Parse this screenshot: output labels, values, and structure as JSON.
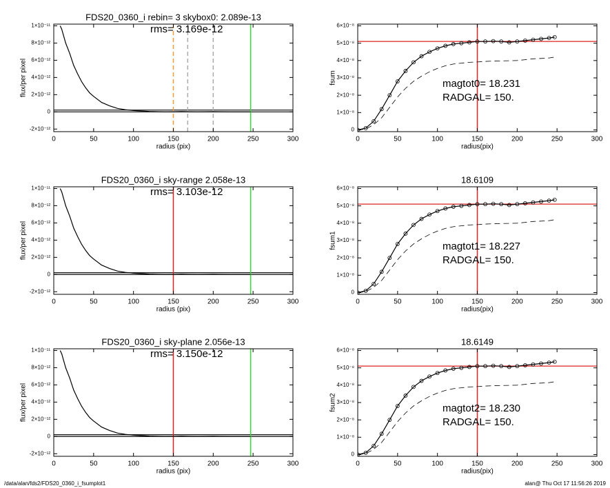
{
  "chart_data": [
    {
      "type": "line",
      "title": "FDS20_0360_i rebin= 3    skybox0:  2.089e-13",
      "annotations": [
        "rms= 3.169e-12"
      ],
      "x_label": "radius (pix)",
      "y_label": "flux/per pixel",
      "xlim": [
        0,
        300
      ],
      "xticks": [
        0,
        50,
        100,
        150,
        200,
        250,
        300
      ],
      "ylim": [
        -2.3e-12,
        1.02e-11
      ],
      "yticks": [
        {
          "value": 1e-11,
          "label": "1×10⁻¹¹"
        },
        {
          "value": 8e-12,
          "label": "8×10⁻¹²"
        },
        {
          "value": 6e-12,
          "label": "6×10⁻¹²"
        },
        {
          "value": 4e-12,
          "label": "4×10⁻¹²"
        },
        {
          "value": 2e-12,
          "label": "2×10⁻¹²"
        },
        0,
        {
          "value": -2e-12,
          "label": "-2×10⁻¹²"
        }
      ],
      "x": [
        8,
        10,
        15,
        20,
        25,
        30,
        35,
        40,
        45,
        50,
        60,
        70,
        80,
        90,
        100,
        120,
        140,
        160,
        180,
        200,
        220,
        247
      ],
      "series": [
        {
          "color": "#000000",
          "values": [
            1e-11,
            9.6e-12,
            8e-12,
            6.8e-12,
            5.4e-12,
            4.4e-12,
            3.5e-12,
            2.8e-12,
            2.2e-12,
            1.8e-12,
            1.1e-12,
            7e-13,
            4e-13,
            2.5e-13,
            1.5e-13,
            5e-14,
            0,
            3e-14,
            0,
            2e-14,
            0,
            0
          ]
        }
      ],
      "hlines": [
        {
          "y": 2.089e-13,
          "color": "#000000"
        },
        {
          "y": 0,
          "color": "#000000"
        }
      ],
      "vlines": [
        {
          "x": 150,
          "color": "#f09a3a",
          "dash": true
        },
        {
          "x": 168,
          "color": "#aaaaaa",
          "dash": true
        },
        {
          "x": 200,
          "color": "#aaaaaa",
          "dash": true
        },
        {
          "x": 247,
          "color": "#33dd33"
        }
      ]
    },
    {
      "type": "line",
      "annotations": [
        "magtot0=  18.231",
        "RADGAL=    150."
      ],
      "x_label": "radius(pix)",
      "y_label": "fsum",
      "xlim": [
        0,
        300
      ],
      "xticks": [
        0,
        50,
        100,
        150,
        200,
        250,
        300
      ],
      "ylim": [
        -1e-09,
        6.1e-08
      ],
      "yticks": [
        {
          "value": 6e-08,
          "label": "6×10⁻⁸"
        },
        {
          "value": 5e-08,
          "label": "5×10⁻⁸"
        },
        {
          "value": 4e-08,
          "label": "4×10⁻⁸"
        },
        {
          "value": 3e-08,
          "label": "3×10⁻⁸"
        },
        {
          "value": 2e-08,
          "label": "2×10⁻⁸"
        },
        {
          "value": 1e-08,
          "label": "1×10⁻⁸"
        },
        0
      ],
      "x": [
        0,
        10,
        20,
        30,
        40,
        50,
        60,
        70,
        80,
        90,
        100,
        110,
        120,
        130,
        140,
        150,
        160,
        170,
        180,
        190,
        200,
        210,
        220,
        230,
        240,
        247
      ],
      "series": [
        {
          "color": "#000000",
          "marker": "circle",
          "values": [
            0,
            1e-09,
            5e-09,
            1.2e-08,
            2e-08,
            2.8e-08,
            3.4e-08,
            3.9e-08,
            4.25e-08,
            4.5e-08,
            4.7e-08,
            4.85e-08,
            4.95e-08,
            5e-08,
            5.05e-08,
            5.1e-08,
            5.1e-08,
            5.12e-08,
            5.1e-08,
            5.05e-08,
            5.1e-08,
            5.15e-08,
            5.2e-08,
            5.25e-08,
            5.3e-08,
            5.35e-08
          ]
        },
        {
          "color": "#000000",
          "dash": true,
          "values": [
            0,
            5e-10,
            3e-09,
            7e-09,
            1.3e-08,
            1.9e-08,
            2.4e-08,
            2.8e-08,
            3.1e-08,
            3.35e-08,
            3.55e-08,
            3.7e-08,
            3.8e-08,
            3.85e-08,
            3.9e-08,
            3.92e-08,
            3.95e-08,
            3.97e-08,
            3.98e-08,
            3.99e-08,
            4e-08,
            4.05e-08,
            4.1e-08,
            4.12e-08,
            4.15e-08,
            4.2e-08
          ]
        }
      ],
      "hlines": [
        {
          "y": 5.1e-08,
          "color": "#dd2222"
        }
      ],
      "vlines": [
        {
          "x": 150,
          "color": "#dd2222"
        }
      ]
    },
    {
      "type": "line",
      "title": "FDS20_0360_i sky-range  2.058e-13",
      "annotations": [
        "rms= 3.103e-12"
      ],
      "x_label": "radius (pix)",
      "y_label": "flux/per pixel",
      "xlim": [
        0,
        300
      ],
      "xticks": [
        0,
        50,
        100,
        150,
        200,
        250,
        300
      ],
      "ylim": [
        -2.3e-12,
        1.02e-11
      ],
      "yticks": [
        {
          "value": 1e-11,
          "label": "1×10⁻¹¹"
        },
        {
          "value": 8e-12,
          "label": "8×10⁻¹²"
        },
        {
          "value": 6e-12,
          "label": "6×10⁻¹²"
        },
        {
          "value": 4e-12,
          "label": "4×10⁻¹²"
        },
        {
          "value": 2e-12,
          "label": "2×10⁻¹²"
        },
        0,
        {
          "value": -2e-12,
          "label": "-2×10⁻¹²"
        }
      ],
      "x": [
        8,
        10,
        15,
        20,
        25,
        30,
        35,
        40,
        45,
        50,
        60,
        70,
        80,
        90,
        100,
        120,
        140,
        160,
        180,
        200,
        220,
        247
      ],
      "series": [
        {
          "color": "#000000",
          "values": [
            1e-11,
            9.6e-12,
            8e-12,
            6.8e-12,
            5.4e-12,
            4.4e-12,
            3.5e-12,
            2.8e-12,
            2.2e-12,
            1.8e-12,
            1.1e-12,
            7e-13,
            4e-13,
            2.5e-13,
            1.5e-13,
            5e-14,
            0,
            3e-14,
            0,
            2e-14,
            0,
            0
          ]
        }
      ],
      "hlines": [
        {
          "y": 2.058e-13,
          "color": "#000000"
        },
        {
          "y": 0,
          "color": "#000000"
        }
      ],
      "vlines": [
        {
          "x": 150,
          "color": "#dd2222"
        },
        {
          "x": 247,
          "color": "#33dd33"
        }
      ]
    },
    {
      "type": "line",
      "title": "18.6109",
      "annotations": [
        "magtot1=  18.227",
        "RADGAL=    150."
      ],
      "x_label": "radius(pix)",
      "y_label": "fsum1",
      "xlim": [
        0,
        300
      ],
      "xticks": [
        0,
        50,
        100,
        150,
        200,
        250,
        300
      ],
      "ylim": [
        -1e-09,
        6.1e-08
      ],
      "yticks": [
        {
          "value": 6e-08,
          "label": "6×10⁻⁸"
        },
        {
          "value": 5e-08,
          "label": "5×10⁻⁸"
        },
        {
          "value": 4e-08,
          "label": "4×10⁻⁸"
        },
        {
          "value": 3e-08,
          "label": "3×10⁻⁸"
        },
        {
          "value": 2e-08,
          "label": "2×10⁻⁸"
        },
        {
          "value": 1e-08,
          "label": "1×10⁻⁸"
        },
        0
      ],
      "x": [
        0,
        10,
        20,
        30,
        40,
        50,
        60,
        70,
        80,
        90,
        100,
        110,
        120,
        130,
        140,
        150,
        160,
        170,
        180,
        190,
        200,
        210,
        220,
        230,
        240,
        247
      ],
      "series": [
        {
          "color": "#000000",
          "marker": "circle",
          "values": [
            0,
            1e-09,
            5e-09,
            1.2e-08,
            2e-08,
            2.8e-08,
            3.4e-08,
            3.9e-08,
            4.25e-08,
            4.5e-08,
            4.7e-08,
            4.85e-08,
            4.95e-08,
            5e-08,
            5.05e-08,
            5.1e-08,
            5.1e-08,
            5.12e-08,
            5.1e-08,
            5.05e-08,
            5.1e-08,
            5.15e-08,
            5.2e-08,
            5.25e-08,
            5.3e-08,
            5.35e-08
          ]
        },
        {
          "color": "#000000",
          "dash": true,
          "values": [
            0,
            5e-10,
            3e-09,
            7e-09,
            1.3e-08,
            1.9e-08,
            2.4e-08,
            2.8e-08,
            3.1e-08,
            3.35e-08,
            3.55e-08,
            3.7e-08,
            3.8e-08,
            3.85e-08,
            3.9e-08,
            3.92e-08,
            3.95e-08,
            3.97e-08,
            3.98e-08,
            3.99e-08,
            4e-08,
            4.05e-08,
            4.1e-08,
            4.12e-08,
            4.15e-08,
            4.2e-08
          ]
        }
      ],
      "hlines": [
        {
          "y": 5.1e-08,
          "color": "#dd2222"
        }
      ],
      "vlines": [
        {
          "x": 150,
          "color": "#dd2222"
        }
      ]
    },
    {
      "type": "line",
      "title": "FDS20_0360_i sky-plane  2.056e-13",
      "annotations": [
        "rms= 3.150e-12"
      ],
      "x_label": "radius (pix)",
      "y_label": "flux/per pixel",
      "xlim": [
        0,
        300
      ],
      "xticks": [
        0,
        50,
        100,
        150,
        200,
        250,
        300
      ],
      "ylim": [
        -2.3e-12,
        1.02e-11
      ],
      "yticks": [
        {
          "value": 1e-11,
          "label": "1×10⁻¹¹"
        },
        {
          "value": 8e-12,
          "label": "8×10⁻¹²"
        },
        {
          "value": 6e-12,
          "label": "6×10⁻¹²"
        },
        {
          "value": 4e-12,
          "label": "4×10⁻¹²"
        },
        {
          "value": 2e-12,
          "label": "2×10⁻¹²"
        },
        0,
        {
          "value": -2e-12,
          "label": "-2×10⁻¹²"
        }
      ],
      "x": [
        8,
        10,
        15,
        20,
        25,
        30,
        35,
        40,
        45,
        50,
        60,
        70,
        80,
        90,
        100,
        120,
        140,
        160,
        180,
        200,
        220,
        247
      ],
      "series": [
        {
          "color": "#000000",
          "values": [
            1e-11,
            9.6e-12,
            8e-12,
            6.8e-12,
            5.4e-12,
            4.4e-12,
            3.5e-12,
            2.8e-12,
            2.2e-12,
            1.8e-12,
            1.1e-12,
            7e-13,
            4e-13,
            2.5e-13,
            1.5e-13,
            5e-14,
            0,
            3e-14,
            0,
            2e-14,
            0,
            0
          ]
        }
      ],
      "hlines": [
        {
          "y": 2.056e-13,
          "color": "#000000"
        },
        {
          "y": 0,
          "color": "#000000"
        }
      ],
      "vlines": [
        {
          "x": 150,
          "color": "#dd2222"
        },
        {
          "x": 247,
          "color": "#33dd33"
        }
      ]
    },
    {
      "type": "line",
      "title": "18.6149",
      "annotations": [
        "magtot2=  18.230",
        "RADGAL=    150."
      ],
      "x_label": "radius(pix)",
      "y_label": "fsum2",
      "xlim": [
        0,
        300
      ],
      "xticks": [
        0,
        50,
        100,
        150,
        200,
        250,
        300
      ],
      "ylim": [
        -1e-09,
        6.1e-08
      ],
      "yticks": [
        {
          "value": 6e-08,
          "label": "6×10⁻⁸"
        },
        {
          "value": 5e-08,
          "label": "5×10⁻⁸"
        },
        {
          "value": 4e-08,
          "label": "4×10⁻⁸"
        },
        {
          "value": 3e-08,
          "label": "3×10⁻⁸"
        },
        {
          "value": 2e-08,
          "label": "2×10⁻⁸"
        },
        {
          "value": 1e-08,
          "label": "1×10⁻⁸"
        },
        0
      ],
      "x": [
        0,
        10,
        20,
        30,
        40,
        50,
        60,
        70,
        80,
        90,
        100,
        110,
        120,
        130,
        140,
        150,
        160,
        170,
        180,
        190,
        200,
        210,
        220,
        230,
        240,
        247
      ],
      "series": [
        {
          "color": "#000000",
          "marker": "circle",
          "values": [
            0,
            1e-09,
            5e-09,
            1.2e-08,
            2e-08,
            2.8e-08,
            3.4e-08,
            3.9e-08,
            4.25e-08,
            4.5e-08,
            4.7e-08,
            4.85e-08,
            4.95e-08,
            5e-08,
            5.05e-08,
            5.1e-08,
            5.1e-08,
            5.12e-08,
            5.1e-08,
            5.05e-08,
            5.1e-08,
            5.15e-08,
            5.2e-08,
            5.25e-08,
            5.3e-08,
            5.35e-08
          ]
        },
        {
          "color": "#000000",
          "dash": true,
          "values": [
            0,
            5e-10,
            3e-09,
            7e-09,
            1.3e-08,
            1.9e-08,
            2.4e-08,
            2.8e-08,
            3.1e-08,
            3.35e-08,
            3.55e-08,
            3.7e-08,
            3.8e-08,
            3.85e-08,
            3.9e-08,
            3.92e-08,
            3.95e-08,
            3.97e-08,
            3.98e-08,
            3.99e-08,
            4e-08,
            4.05e-08,
            4.1e-08,
            4.12e-08,
            4.15e-08,
            4.2e-08
          ]
        }
      ],
      "hlines": [
        {
          "y": 5.1e-08,
          "color": "#dd2222"
        }
      ],
      "vlines": [
        {
          "x": 150,
          "color": "#dd2222"
        }
      ]
    }
  ],
  "footer": {
    "left": "/data/alan/fds2/FDS20_0360_i_fsumplot1",
    "right": "alan@  Thu Oct 17 11:56:26 2019"
  }
}
